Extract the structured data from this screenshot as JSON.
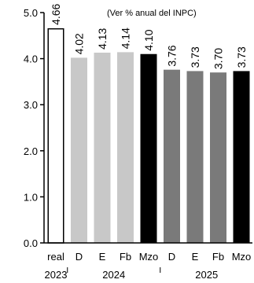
{
  "chart_data": {
    "type": "bar",
    "note": "(Ver % anual del INPC)",
    "categories": [
      "real",
      "D",
      "E",
      "Fb",
      "Mzo",
      "D",
      "E",
      "Fb",
      "Mzo"
    ],
    "groups": [
      {
        "label": "2023",
        "start": 0,
        "end": 0
      },
      {
        "label": "2024",
        "start": 1,
        "end": 4
      },
      {
        "label": "2025",
        "start": 5,
        "end": 8
      }
    ],
    "values": [
      4.66,
      4.02,
      4.13,
      4.14,
      4.1,
      3.76,
      3.73,
      3.7,
      3.73
    ],
    "value_labels": [
      "4.66",
      "4.02",
      "4.13",
      "4.14",
      "4.10",
      "3.76",
      "3.73",
      "3.70",
      "3.73"
    ],
    "bar_colors": [
      "#ffffff",
      "#c8c8c8",
      "#c8c8c8",
      "#c8c8c8",
      "#000000",
      "#7a7a7a",
      "#7a7a7a",
      "#7a7a7a",
      "#000000"
    ],
    "ylim": [
      0,
      5.0
    ],
    "yticks": [
      0.0,
      1.0,
      2.0,
      3.0,
      4.0,
      5.0
    ],
    "ytick_labels": [
      "0.0",
      "1.0",
      "2.0",
      "3.0",
      "4.0",
      "5.0"
    ],
    "grid": false
  }
}
